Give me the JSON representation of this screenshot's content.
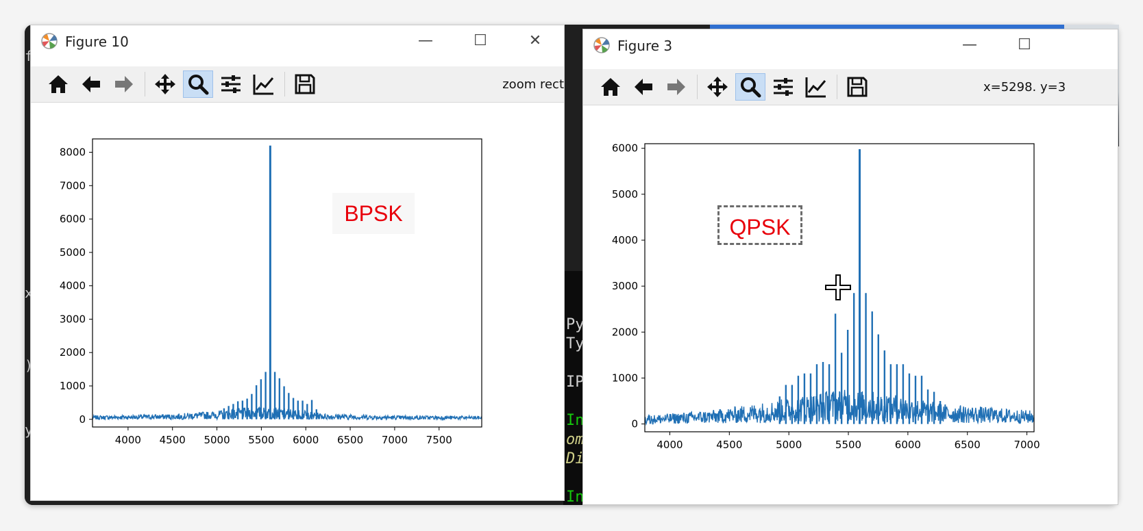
{
  "left_window": {
    "title": "Figure 10",
    "toolbar_status": "zoom rect",
    "annotation": "BPSK"
  },
  "right_window": {
    "title": "Figure 3",
    "toolbar_status": "x=5298. y=3",
    "annotation": "QPSK"
  },
  "toolbar_icons": [
    "home-icon",
    "back-arrow-icon",
    "forward-arrow-icon",
    "pan-icon",
    "zoom-icon",
    "configure-subplots-icon",
    "edit-axis-icon",
    "save-icon"
  ],
  "background_terminal": {
    "lines": [
      "Py",
      "Ty",
      "IP",
      "In",
      "om",
      "Di",
      "In"
    ]
  },
  "colors": {
    "line": "#1f6fb4",
    "annotation": "#e8000b",
    "active_tool": "#c9def5"
  },
  "chart_data": [
    {
      "type": "line",
      "title": "",
      "xlabel": "",
      "ylabel": "",
      "xlim": [
        3600,
        7980
      ],
      "ylim": [
        -230,
        8400
      ],
      "xticks": [
        4000,
        4500,
        5000,
        5500,
        6000,
        6500,
        7000,
        7500
      ],
      "yticks": [
        0,
        1000,
        2000,
        3000,
        4000,
        5000,
        6000,
        7000,
        8000
      ],
      "peak_x": 5600,
      "peak_y": 8200,
      "sidelobe_spacing": 52,
      "sidelobes": [
        [
          5548,
          1420
        ],
        [
          5652,
          1420
        ],
        [
          5496,
          1200
        ],
        [
          5704,
          1230
        ],
        [
          5444,
          1020
        ],
        [
          5756,
          990
        ],
        [
          5392,
          760
        ],
        [
          5808,
          790
        ],
        [
          5340,
          620
        ],
        [
          5860,
          640
        ],
        [
          5288,
          560
        ],
        [
          5912,
          560
        ],
        [
          5236,
          540
        ],
        [
          5964,
          560
        ],
        [
          5184,
          460
        ],
        [
          6016,
          460
        ],
        [
          5132,
          400
        ],
        [
          6068,
          580
        ],
        [
          5080,
          330
        ],
        [
          6120,
          300
        ]
      ],
      "noise_floor": [
        [
          3600,
          110
        ],
        [
          4500,
          150
        ],
        [
          5000,
          230
        ],
        [
          5400,
          330
        ],
        [
          5800,
          300
        ],
        [
          6200,
          160
        ],
        [
          7000,
          110
        ],
        [
          7980,
          100
        ]
      ],
      "grid": false,
      "legend": "none"
    },
    {
      "type": "line",
      "title": "",
      "xlabel": "",
      "ylabel": "",
      "xlim": [
        3790,
        7060
      ],
      "ylim": [
        -170,
        6100
      ],
      "xticks": [
        4000,
        4500,
        5000,
        5500,
        6000,
        6500,
        7000
      ],
      "yticks": [
        0,
        1000,
        2000,
        3000,
        4000,
        5000,
        6000
      ],
      "peak_x": 5595,
      "peak_y": 5980,
      "sidelobe_spacing": 52,
      "sidelobes": [
        [
          5547,
          2850
        ],
        [
          5647,
          2850
        ],
        [
          5495,
          2050
        ],
        [
          5700,
          2450
        ],
        [
          5443,
          1550
        ],
        [
          5752,
          1950
        ],
        [
          5391,
          2400
        ],
        [
          5804,
          1600
        ],
        [
          5339,
          1300
        ],
        [
          5856,
          1300
        ],
        [
          5287,
          1350
        ],
        [
          5908,
          1300
        ],
        [
          5235,
          1300
        ],
        [
          5960,
          1300
        ],
        [
          5183,
          1100
        ],
        [
          6012,
          1100
        ],
        [
          5131,
          1100
        ],
        [
          6064,
          1050
        ],
        [
          5079,
          1050
        ],
        [
          6116,
          1050
        ],
        [
          5027,
          850
        ],
        [
          6168,
          750
        ],
        [
          4975,
          850
        ],
        [
          6220,
          700
        ],
        [
          4923,
          600
        ],
        [
          6272,
          500
        ]
      ],
      "noise_floor": [
        [
          3790,
          170
        ],
        [
          4400,
          280
        ],
        [
          4900,
          450
        ],
        [
          5400,
          650
        ],
        [
          5800,
          600
        ],
        [
          6300,
          380
        ],
        [
          7060,
          260
        ]
      ],
      "grid": false,
      "legend": "none"
    }
  ]
}
